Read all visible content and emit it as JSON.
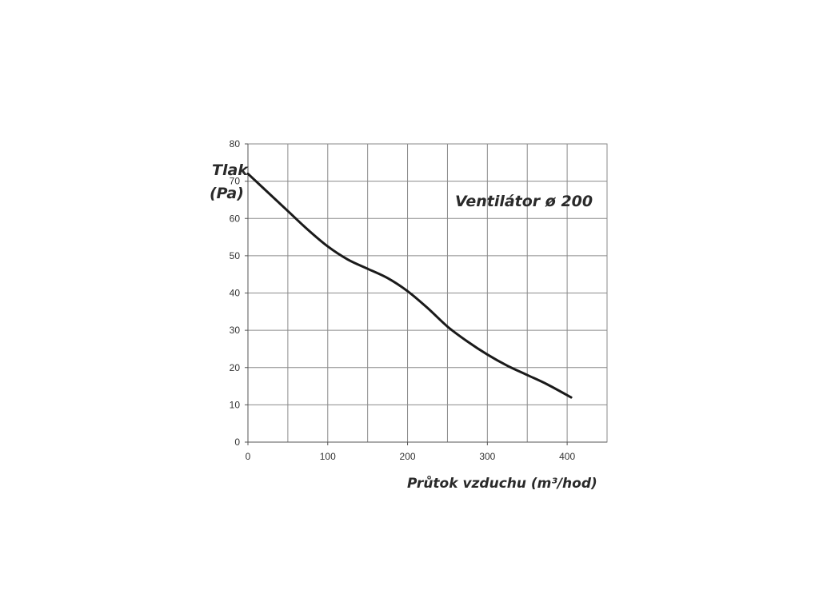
{
  "chart_data": {
    "type": "line",
    "title": "Ventilátor ø 200",
    "ylabel_line1": "Tlak",
    "ylabel_line2": "(Pa)",
    "xlabel": "Průtok vzduchu (m³/hod)",
    "xlim": [
      0,
      450
    ],
    "ylim": [
      0,
      80
    ],
    "xticks": [
      0,
      100,
      200,
      300,
      400
    ],
    "xtick_labels": [
      "0",
      "100",
      "200",
      "300",
      "400"
    ],
    "yticks": [
      0,
      10,
      20,
      30,
      40,
      50,
      60,
      70,
      80
    ],
    "ytick_labels": [
      "0",
      "10",
      "20",
      "30",
      "40",
      "50",
      "60",
      "70",
      "80"
    ],
    "grid": true,
    "grid_x_step": 50,
    "series": [
      {
        "x": [
          0,
          25,
          50,
          75,
          100,
          125,
          150,
          175,
          200,
          225,
          250,
          275,
          300,
          325,
          350,
          375,
          405
        ],
        "y": [
          72,
          67,
          62,
          57,
          52.5,
          49,
          46.5,
          44,
          40.5,
          36,
          31,
          27,
          23.5,
          20.5,
          18,
          15.5,
          12
        ]
      }
    ],
    "line_color": "#1a1a1a",
    "grid_color": "#8a8a8a"
  }
}
